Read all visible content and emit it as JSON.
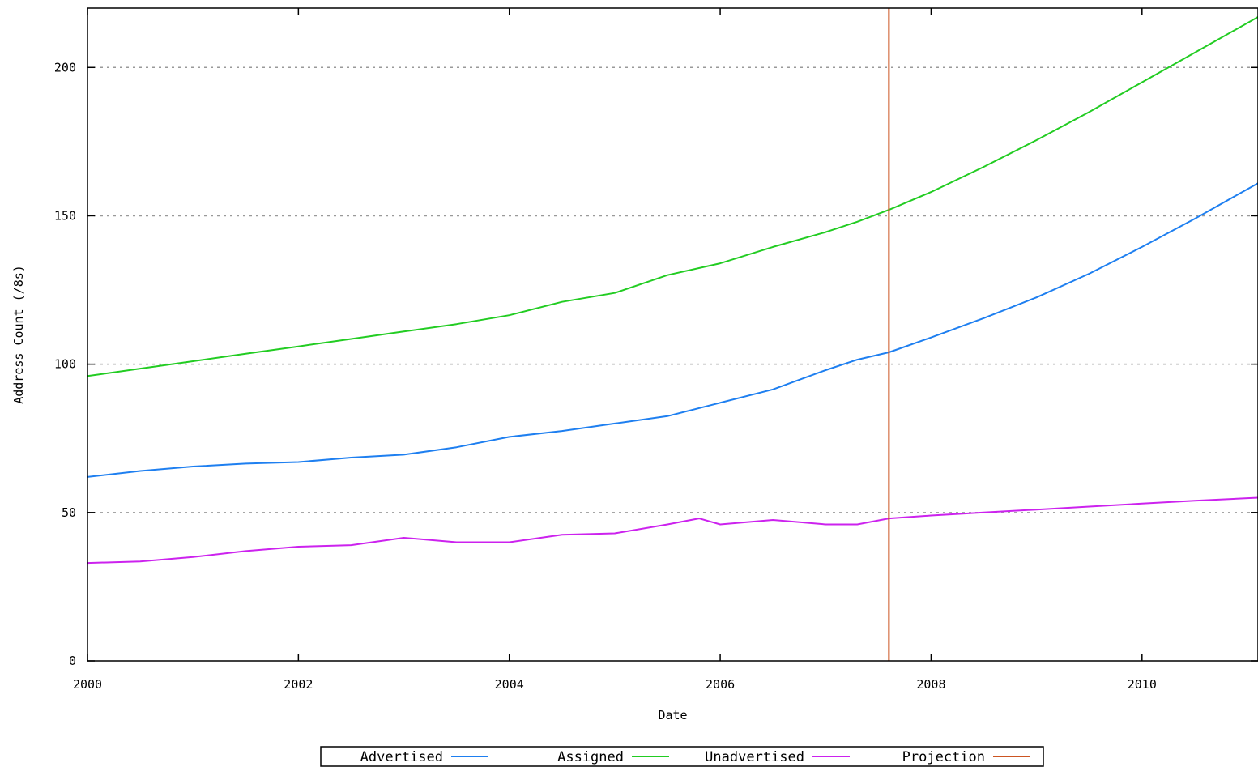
{
  "chart_data": {
    "type": "line",
    "title": "",
    "xlabel": "Date",
    "ylabel": "Address Count (/8s)",
    "xlim": [
      2000,
      2011.1
    ],
    "ylim": [
      0,
      220
    ],
    "x_ticks": [
      2000,
      2002,
      2004,
      2006,
      2008,
      2010
    ],
    "y_ticks": [
      0,
      50,
      100,
      150,
      200
    ],
    "grid": "horizontal dotted",
    "legend_position": "bottom-center",
    "projection_x": 2007.6,
    "series": [
      {
        "name": "Advertised",
        "color": "#1e7ff0",
        "x": [
          2000,
          2000.5,
          2001,
          2001.5,
          2002,
          2002.5,
          2003,
          2003.5,
          2004,
          2004.5,
          2005,
          2005.5,
          2006,
          2006.5,
          2007,
          2007.3,
          2007.6,
          2008,
          2008.5,
          2009,
          2009.5,
          2010,
          2010.5,
          2011.1
        ],
        "values": [
          62,
          64,
          65.5,
          66.5,
          67,
          68.5,
          69.5,
          72,
          75.5,
          77.5,
          80,
          82.5,
          87,
          91.5,
          98,
          101.5,
          104,
          109,
          115.5,
          122.5,
          130.5,
          139.5,
          149,
          161
        ]
      },
      {
        "name": "Assigned",
        "color": "#22cc22",
        "x": [
          2000,
          2000.5,
          2001,
          2001.5,
          2002,
          2002.5,
          2003,
          2003.5,
          2004,
          2004.5,
          2005,
          2005.5,
          2006,
          2006.5,
          2007,
          2007.3,
          2007.6,
          2008,
          2008.5,
          2009,
          2009.5,
          2010,
          2010.5,
          2011.1
        ],
        "values": [
          96,
          98.5,
          101,
          103.5,
          106,
          108.5,
          111,
          113.5,
          116.5,
          121,
          124,
          130,
          134,
          139.5,
          144.5,
          148,
          152,
          158,
          166.5,
          175.5,
          185,
          195,
          205,
          217
        ]
      },
      {
        "name": "Unadvertised",
        "color": "#cc22ee",
        "x": [
          2000,
          2000.5,
          2001,
          2001.5,
          2002,
          2002.5,
          2003,
          2003.5,
          2004,
          2004.5,
          2005,
          2005.5,
          2005.8,
          2006,
          2006.5,
          2007,
          2007.3,
          2007.6,
          2008,
          2008.5,
          2009,
          2009.5,
          2010,
          2010.5,
          2011.1
        ],
        "values": [
          33,
          33.5,
          35,
          37,
          38.5,
          39,
          41.5,
          40,
          40,
          42.5,
          43,
          46,
          48,
          46,
          47.5,
          46,
          46,
          48,
          49,
          50,
          51,
          52,
          53,
          54,
          55
        ]
      }
    ],
    "legend": [
      {
        "label": "Advertised",
        "color": "#1e7ff0"
      },
      {
        "label": "Assigned",
        "color": "#22cc22"
      },
      {
        "label": "Unadvertised",
        "color": "#cc22ee"
      },
      {
        "label": "Projection",
        "color": "#cc5522"
      }
    ]
  }
}
